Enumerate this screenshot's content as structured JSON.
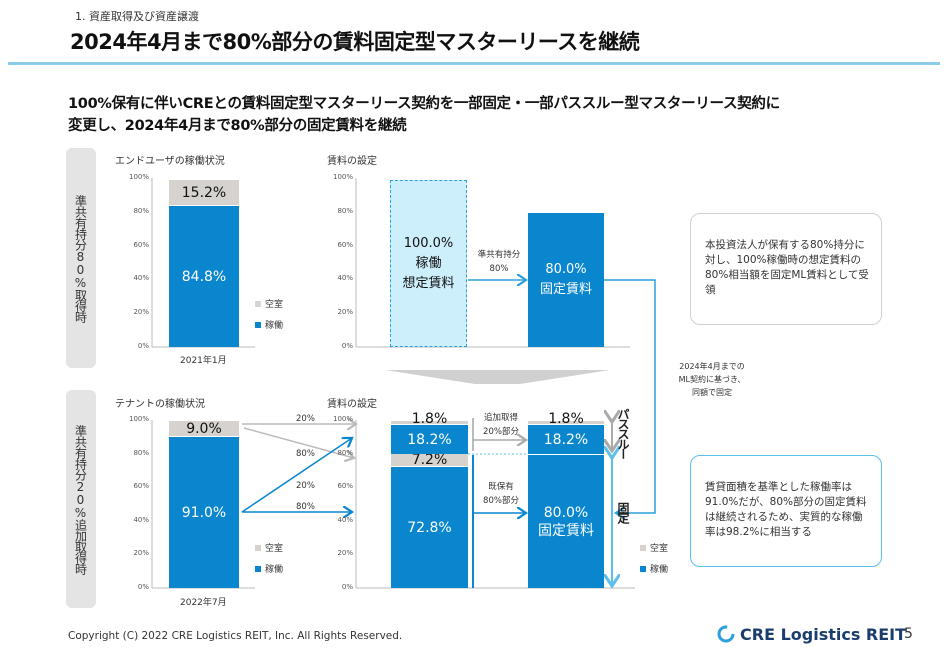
{
  "header": {
    "section": "1. 資産取得及び資産譲渡",
    "title": "2024年4月まで80%部分の賃料固定型マスターリースを継続"
  },
  "lead": {
    "line1": "100%保有に伴いCREとの賃料固定型マスターリース契約を一部固定・一部パススルー型マスターリース契約に",
    "line2": "変更し、2024年4月まで80%部分の固定賃料を継続"
  },
  "side_labels": {
    "top": "準共有持分80%取得時",
    "bottom": "準共有持分20%追加取得時"
  },
  "ticks": [
    "0%",
    "20%",
    "40%",
    "60%",
    "80%",
    "100%"
  ],
  "legend": {
    "vacant": "空室",
    "occupied": "稼働"
  },
  "colors": {
    "occupied": "#0a86cf",
    "vacant": "#d6d3ce",
    "assumed": "#cdeefb",
    "accent": "#2aa0dc"
  },
  "top_row": {
    "occupancy_chart": {
      "title": "エンドユーザの稼働状況",
      "category": "2021年1月",
      "occupied": 84.8,
      "occupied_label": "84.8%",
      "vacant": 15.2,
      "vacant_label": "15.2%"
    },
    "rent_chart": {
      "title": "賃料の設定",
      "assumed_line1": "100.0%",
      "assumed_line2": "稼働",
      "assumed_line3": "想定賃料",
      "arrow_label1": "準共有持分",
      "arrow_label2": "80%",
      "fixed_value": 80.0,
      "fixed_line1": "80.0%",
      "fixed_line2": "固定賃料"
    },
    "callout": "本投資法人が保有する80%持分に対し、100%稼働時の想定賃料の80%相当額を固定ML賃料として受領"
  },
  "connector_note": {
    "line1": "2024年4月までの",
    "line2": "ML契約に基づき、",
    "line3": "同額で固定"
  },
  "bottom_row": {
    "occupancy_chart": {
      "title": "テナントの稼働状況",
      "category": "2022年7月",
      "occupied": 91.0,
      "occupied_label": "91.0%",
      "vacant": 9.0,
      "vacant_label": "9.0%"
    },
    "split_labels": [
      "20%",
      "80%",
      "20%",
      "80%"
    ],
    "rent_chart": {
      "title": "賃料の設定",
      "left_segments": [
        {
          "kind": "occupied",
          "value": 72.8,
          "label": "72.8%"
        },
        {
          "kind": "vacant",
          "value": 7.2,
          "label": "7.2%"
        },
        {
          "kind": "occupied",
          "value": 18.2,
          "label": "18.2%"
        },
        {
          "kind": "vacant",
          "value": 1.8,
          "label": "1.8%"
        }
      ],
      "right_segments": [
        {
          "kind": "occupied",
          "value": 80.0,
          "label": "80.0%",
          "label2": "固定賃料"
        },
        {
          "kind": "occupied",
          "value": 18.2,
          "label": "18.2%"
        },
        {
          "kind": "vacant",
          "value": 1.8,
          "label": "1.8%"
        }
      ],
      "additional_label1": "追加取得",
      "additional_label2": "20%部分",
      "existing_label1": "既保有",
      "existing_label2": "80%部分",
      "passthrough": "パススルー",
      "fixed": "固定"
    },
    "callout": "賃貸面積を基準とした稼働率は91.0%だが、80%部分の固定賃料は継続されるため、実質的な稼働率は98.2%に相当する"
  },
  "footer": {
    "copyright": "Copyright (C) 2022 CRE Logistics REIT, Inc. All Rights Reserved.",
    "logo": "CRE Logistics REIT",
    "page": "5"
  }
}
